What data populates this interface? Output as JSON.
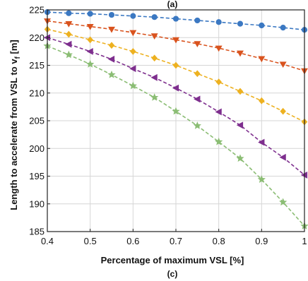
{
  "chart_data": {
    "type": "line",
    "xlabel": "Percentage of maximum VSL [%]",
    "ylabel": "Length to accelerate from VSL to v",
    "ylabel_sub": "f",
    "ylabel_unit": " [m]",
    "panel_label_top": "(a)",
    "panel_label_bottom": "(c)",
    "xlim": [
      0.4,
      1
    ],
    "ylim": [
      185,
      225
    ],
    "grid": true,
    "xticks": [
      0.4,
      0.5,
      0.6,
      0.7,
      0.8,
      0.9,
      1
    ],
    "xtick_labels": [
      "0.4",
      "0.5",
      "0.6",
      "0.7",
      "0.8",
      "0.9",
      "1"
    ],
    "yticks": [
      185,
      190,
      195,
      200,
      205,
      210,
      215,
      220,
      225
    ],
    "x": [
      0.4,
      0.45,
      0.5,
      0.55,
      0.6,
      0.65,
      0.7,
      0.75,
      0.8,
      0.85,
      0.9,
      0.95,
      1.0
    ],
    "series": [
      {
        "color": "#3b78c2",
        "marker": "circle",
        "values": [
          224.6,
          224.4,
          224.3,
          224.1,
          223.9,
          223.7,
          223.4,
          223.1,
          222.8,
          222.5,
          222.2,
          221.8,
          221.4
        ]
      },
      {
        "color": "#d9531e",
        "marker": "triangle-down",
        "values": [
          223.0,
          222.5,
          222.0,
          221.5,
          220.9,
          220.3,
          219.6,
          218.9,
          218.1,
          217.2,
          216.2,
          215.2,
          214.0
        ]
      },
      {
        "color": "#edb120",
        "marker": "diamond",
        "values": [
          221.5,
          220.6,
          219.6,
          218.6,
          217.5,
          216.3,
          215.0,
          213.5,
          212.0,
          210.3,
          208.6,
          206.7,
          204.8
        ]
      },
      {
        "color": "#7e2f8e",
        "marker": "triangle-left",
        "values": [
          220.0,
          218.8,
          217.5,
          216.1,
          214.4,
          212.8,
          210.9,
          208.9,
          206.6,
          204.2,
          201.1,
          198.4,
          195.2
        ]
      },
      {
        "color": "#8bbd74",
        "marker": "star",
        "values": [
          218.5,
          216.9,
          215.2,
          213.3,
          211.3,
          209.2,
          206.7,
          204.1,
          201.2,
          198.2,
          194.4,
          190.3,
          186.0
        ]
      }
    ]
  }
}
